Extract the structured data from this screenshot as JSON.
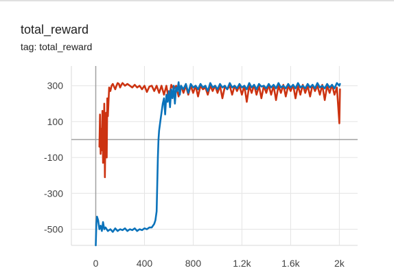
{
  "card": {
    "title": "total_reward",
    "subtitle": "tag: total_reward"
  },
  "chart_data": {
    "type": "line",
    "title": "total_reward",
    "subtitle": "tag: total_reward",
    "xlabel": "",
    "ylabel": "",
    "xlim": [
      -200,
      2150
    ],
    "ylim": [
      -590,
      410
    ],
    "x_ticks": [
      {
        "value": 0,
        "label": "0"
      },
      {
        "value": 400,
        "label": "400"
      },
      {
        "value": 800,
        "label": "800"
      },
      {
        "value": 1200,
        "label": "1.2k"
      },
      {
        "value": 1600,
        "label": "1.6k"
      },
      {
        "value": 2000,
        "label": "2k"
      }
    ],
    "y_ticks": [
      {
        "value": 300,
        "label": "300"
      },
      {
        "value": 100,
        "label": "100"
      },
      {
        "value": -100,
        "label": "-100"
      },
      {
        "value": -300,
        "label": "-300"
      },
      {
        "value": -500,
        "label": "-500"
      }
    ],
    "grid": true,
    "zero_axes": true,
    "legend": "none",
    "series": [
      {
        "color": "#cc3311",
        "points": [
          [
            30,
            -40
          ],
          [
            35,
            140
          ],
          [
            40,
            -80
          ],
          [
            45,
            60
          ],
          [
            50,
            -60
          ],
          [
            55,
            160
          ],
          [
            60,
            -130
          ],
          [
            65,
            -20
          ],
          [
            70,
            200
          ],
          [
            75,
            -210
          ],
          [
            80,
            40
          ],
          [
            85,
            150
          ],
          [
            90,
            -100
          ],
          [
            95,
            230
          ],
          [
            100,
            130
          ],
          [
            110,
            290
          ],
          [
            120,
            270
          ],
          [
            130,
            300
          ],
          [
            140,
            310
          ],
          [
            150,
            295
          ],
          [
            160,
            280
          ],
          [
            170,
            300
          ],
          [
            180,
            315
          ],
          [
            190,
            310
          ],
          [
            200,
            290
          ],
          [
            210,
            305
          ],
          [
            220,
            315
          ],
          [
            240,
            300
          ],
          [
            260,
            310
          ],
          [
            280,
            300
          ],
          [
            300,
            290
          ],
          [
            320,
            305
          ],
          [
            340,
            290
          ],
          [
            360,
            300
          ],
          [
            380,
            280
          ],
          [
            400,
            300
          ],
          [
            420,
            265
          ],
          [
            440,
            295
          ],
          [
            460,
            300
          ],
          [
            480,
            270
          ],
          [
            500,
            300
          ],
          [
            520,
            260
          ],
          [
            540,
            300
          ],
          [
            560,
            250
          ],
          [
            580,
            300
          ],
          [
            600,
            220
          ],
          [
            620,
            305
          ],
          [
            640,
            280
          ],
          [
            660,
            300
          ],
          [
            680,
            240
          ],
          [
            700,
            300
          ],
          [
            720,
            260
          ],
          [
            740,
            300
          ],
          [
            760,
            250
          ],
          [
            780,
            300
          ],
          [
            800,
            260
          ],
          [
            820,
            300
          ],
          [
            840,
            240
          ],
          [
            860,
            300
          ],
          [
            880,
            280
          ],
          [
            900,
            290
          ],
          [
            920,
            250
          ],
          [
            940,
            300
          ],
          [
            960,
            270
          ],
          [
            980,
            300
          ],
          [
            1000,
            260
          ],
          [
            1020,
            300
          ],
          [
            1040,
            230
          ],
          [
            1060,
            295
          ],
          [
            1080,
            280
          ],
          [
            1100,
            300
          ],
          [
            1120,
            250
          ],
          [
            1140,
            300
          ],
          [
            1160,
            270
          ],
          [
            1180,
            300
          ],
          [
            1200,
            250
          ],
          [
            1220,
            300
          ],
          [
            1240,
            210
          ],
          [
            1260,
            300
          ],
          [
            1280,
            260
          ],
          [
            1300,
            305
          ],
          [
            1320,
            250
          ],
          [
            1340,
            300
          ],
          [
            1360,
            230
          ],
          [
            1380,
            300
          ],
          [
            1400,
            260
          ],
          [
            1420,
            305
          ],
          [
            1440,
            250
          ],
          [
            1460,
            300
          ],
          [
            1480,
            220
          ],
          [
            1500,
            300
          ],
          [
            1520,
            260
          ],
          [
            1540,
            305
          ],
          [
            1560,
            240
          ],
          [
            1580,
            300
          ],
          [
            1600,
            270
          ],
          [
            1620,
            305
          ],
          [
            1640,
            230
          ],
          [
            1660,
            300
          ],
          [
            1680,
            250
          ],
          [
            1700,
            305
          ],
          [
            1720,
            260
          ],
          [
            1740,
            300
          ],
          [
            1760,
            240
          ],
          [
            1780,
            305
          ],
          [
            1800,
            270
          ],
          [
            1820,
            300
          ],
          [
            1840,
            250
          ],
          [
            1860,
            305
          ],
          [
            1880,
            220
          ],
          [
            1900,
            300
          ],
          [
            1920,
            260
          ],
          [
            1940,
            305
          ],
          [
            1960,
            250
          ],
          [
            1980,
            290
          ],
          [
            2000,
            90
          ],
          [
            2005,
            280
          ]
        ]
      },
      {
        "color": "#0a72ba",
        "points": [
          [
            0,
            -590
          ],
          [
            5,
            -470
          ],
          [
            10,
            -430
          ],
          [
            20,
            -450
          ],
          [
            30,
            -500
          ],
          [
            40,
            -480
          ],
          [
            50,
            -510
          ],
          [
            60,
            -460
          ],
          [
            70,
            -500
          ],
          [
            80,
            -490
          ],
          [
            100,
            -510
          ],
          [
            120,
            -500
          ],
          [
            140,
            -515
          ],
          [
            160,
            -495
          ],
          [
            180,
            -510
          ],
          [
            200,
            -500
          ],
          [
            220,
            -505
          ],
          [
            240,
            -495
          ],
          [
            260,
            -510
          ],
          [
            280,
            -500
          ],
          [
            300,
            -505
          ],
          [
            320,
            -495
          ],
          [
            340,
            -510
          ],
          [
            360,
            -500
          ],
          [
            380,
            -505
          ],
          [
            400,
            -495
          ],
          [
            420,
            -500
          ],
          [
            440,
            -490
          ],
          [
            460,
            -490
          ],
          [
            480,
            -470
          ],
          [
            490,
            -450
          ],
          [
            500,
            -400
          ],
          [
            505,
            -250
          ],
          [
            510,
            -100
          ],
          [
            515,
            0
          ],
          [
            520,
            50
          ],
          [
            530,
            100
          ],
          [
            540,
            150
          ],
          [
            550,
            200
          ],
          [
            560,
            230
          ],
          [
            570,
            140
          ],
          [
            580,
            250
          ],
          [
            590,
            210
          ],
          [
            600,
            270
          ],
          [
            610,
            180
          ],
          [
            620,
            280
          ],
          [
            630,
            230
          ],
          [
            640,
            300
          ],
          [
            650,
            200
          ],
          [
            660,
            290
          ],
          [
            670,
            270
          ],
          [
            680,
            320
          ],
          [
            690,
            250
          ],
          [
            700,
            300
          ],
          [
            720,
            280
          ],
          [
            740,
            310
          ],
          [
            760,
            260
          ],
          [
            780,
            310
          ],
          [
            800,
            290
          ],
          [
            820,
            300
          ],
          [
            840,
            280
          ],
          [
            860,
            310
          ],
          [
            880,
            290
          ],
          [
            900,
            300
          ],
          [
            920,
            270
          ],
          [
            940,
            315
          ],
          [
            960,
            290
          ],
          [
            980,
            300
          ],
          [
            1000,
            280
          ],
          [
            1020,
            310
          ],
          [
            1040,
            290
          ],
          [
            1060,
            300
          ],
          [
            1080,
            280
          ],
          [
            1100,
            315
          ],
          [
            1120,
            290
          ],
          [
            1140,
            300
          ],
          [
            1160,
            285
          ],
          [
            1180,
            310
          ],
          [
            1200,
            290
          ],
          [
            1220,
            300
          ],
          [
            1240,
            280
          ],
          [
            1260,
            315
          ],
          [
            1280,
            290
          ],
          [
            1300,
            305
          ],
          [
            1320,
            280
          ],
          [
            1340,
            310
          ],
          [
            1360,
            295
          ],
          [
            1380,
            300
          ],
          [
            1400,
            285
          ],
          [
            1420,
            310
          ],
          [
            1440,
            290
          ],
          [
            1460,
            305
          ],
          [
            1480,
            285
          ],
          [
            1500,
            315
          ],
          [
            1520,
            290
          ],
          [
            1540,
            300
          ],
          [
            1560,
            285
          ],
          [
            1580,
            310
          ],
          [
            1600,
            290
          ],
          [
            1620,
            305
          ],
          [
            1640,
            285
          ],
          [
            1660,
            315
          ],
          [
            1680,
            290
          ],
          [
            1700,
            300
          ],
          [
            1720,
            285
          ],
          [
            1740,
            310
          ],
          [
            1760,
            290
          ],
          [
            1780,
            305
          ],
          [
            1800,
            285
          ],
          [
            1820,
            315
          ],
          [
            1840,
            290
          ],
          [
            1860,
            300
          ],
          [
            1880,
            285
          ],
          [
            1900,
            310
          ],
          [
            1920,
            290
          ],
          [
            1940,
            305
          ],
          [
            1960,
            285
          ],
          [
            1980,
            315
          ],
          [
            2000,
            300
          ],
          [
            2005,
            310
          ]
        ]
      }
    ]
  }
}
